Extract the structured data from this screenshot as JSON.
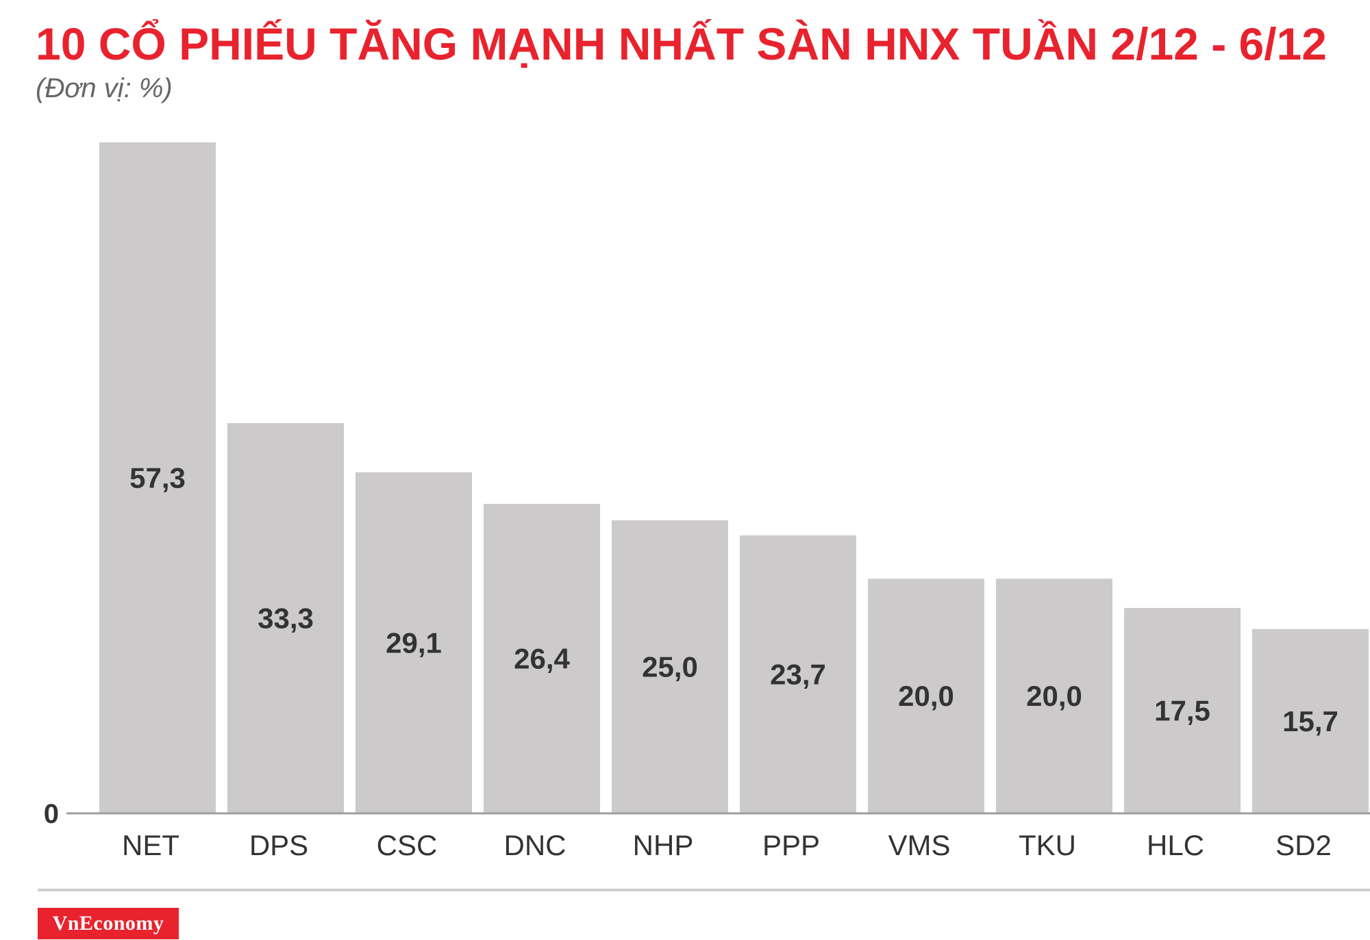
{
  "header": {
    "title": "10 CỔ PHIẾU TĂNG MẠNH NHẤT SÀN HNX TUẦN 2/12 - 6/12",
    "subtitle": "(Đơn vị: %)"
  },
  "brand": {
    "label": "VnEconomy"
  },
  "colors": {
    "title": "#e8232e",
    "bar": "#cccacb",
    "value_label": "#333333",
    "axis": "#9e9e9e",
    "brand_bg": "#e8232e"
  },
  "chart_data": {
    "type": "bar",
    "title": "10 CỔ PHIẾU TĂNG MẠNH NHẤT SÀN HNX TUẦN 2/12 - 6/12",
    "subtitle": "(Đơn vị: %)",
    "categories": [
      "NET",
      "DPS",
      "CSC",
      "DNC",
      "NHP",
      "PPP",
      "VMS",
      "TKU",
      "HLC",
      "SD2"
    ],
    "values": [
      57.3,
      33.3,
      29.1,
      26.4,
      25.0,
      23.7,
      20.0,
      20.0,
      17.5,
      15.7
    ],
    "value_labels": [
      "57,3",
      "33,3",
      "29,1",
      "26,4",
      "25,0",
      "23,7",
      "20,0",
      "20,0",
      "17,5",
      "15,7"
    ],
    "y_tick_labels": [
      "0"
    ],
    "ylim": [
      0,
      57.3
    ],
    "grid": false,
    "legend": "none"
  }
}
